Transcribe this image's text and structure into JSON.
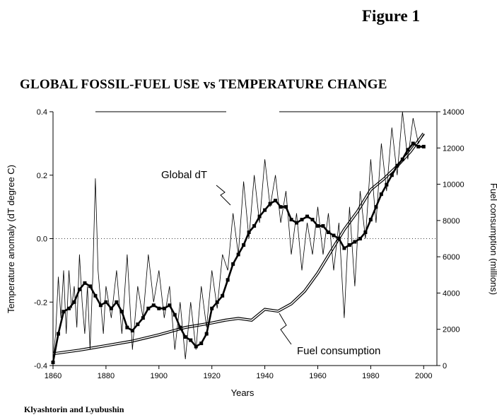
{
  "figure_label": "Figure 1",
  "credit": "Klyashtorin and Lyubushin",
  "chart_data": {
    "type": "line",
    "title": "GLOBAL FOSSIL-FUEL USE vs TEMPERATURE CHANGE",
    "xlabel": "Years",
    "ylabel": "Temperature anomaly (dT degree C)",
    "y2label": "Fuel consumption (millions)",
    "xlim": [
      1860,
      2000
    ],
    "ylim": [
      -0.4,
      0.4
    ],
    "y2lim": [
      0,
      14000
    ],
    "x_ticks": [
      "1860",
      "1880",
      "1900",
      "1920",
      "1940",
      "1960",
      "1980",
      "2000"
    ],
    "y_ticks": [
      "0.4",
      "0.2",
      "0.0",
      "-0.2",
      "-0.4"
    ],
    "y2_ticks": [
      "14000",
      "12000",
      "10000",
      "8000",
      "6000",
      "4000",
      "2000",
      "0"
    ],
    "annotations": [
      "Global dT",
      "Fuel consumption"
    ],
    "grid": "dotted zero line",
    "series": [
      {
        "style": "thick line with square markers",
        "axis": "left",
        "x": [
          1860,
          1862,
          1864,
          1866,
          1868,
          1870,
          1872,
          1874,
          1876,
          1878,
          1880,
          1882,
          1884,
          1886,
          1888,
          1890,
          1892,
          1894,
          1896,
          1898,
          1900,
          1902,
          1904,
          1906,
          1908,
          1910,
          1912,
          1914,
          1916,
          1918,
          1920,
          1922,
          1924,
          1926,
          1928,
          1930,
          1932,
          1934,
          1936,
          1938,
          1940,
          1942,
          1944,
          1946,
          1948,
          1950,
          1952,
          1954,
          1956,
          1958,
          1960,
          1962,
          1964,
          1966,
          1968,
          1970,
          1972,
          1974,
          1976,
          1978,
          1980,
          1982,
          1984,
          1986,
          1988,
          1990,
          1992,
          1994,
          1996,
          1998,
          2000
        ],
        "y": [
          -0.39,
          -0.3,
          -0.23,
          -0.22,
          -0.2,
          -0.16,
          -0.14,
          -0.15,
          -0.18,
          -0.21,
          -0.2,
          -0.22,
          -0.2,
          -0.23,
          -0.28,
          -0.29,
          -0.27,
          -0.25,
          -0.22,
          -0.21,
          -0.22,
          -0.22,
          -0.21,
          -0.24,
          -0.28,
          -0.31,
          -0.32,
          -0.34,
          -0.33,
          -0.3,
          -0.22,
          -0.2,
          -0.18,
          -0.13,
          -0.08,
          -0.05,
          -0.02,
          0.02,
          0.04,
          0.07,
          0.09,
          0.11,
          0.12,
          0.1,
          0.1,
          0.06,
          0.05,
          0.06,
          0.07,
          0.06,
          0.04,
          0.04,
          0.02,
          0.01,
          0.0,
          -0.03,
          -0.02,
          -0.01,
          0.0,
          0.02,
          0.06,
          0.1,
          0.14,
          0.17,
          0.2,
          0.23,
          0.25,
          0.28,
          0.3,
          0.29,
          0.29
        ]
      },
      {
        "style": "thin line",
        "axis": "left",
        "x": [
          1860,
          1861,
          1862,
          1863,
          1864,
          1865,
          1866,
          1867,
          1868,
          1869,
          1870,
          1871,
          1872,
          1873,
          1874,
          1875,
          1876,
          1877,
          1878,
          1879,
          1880,
          1882,
          1884,
          1886,
          1888,
          1890,
          1892,
          1894,
          1896,
          1898,
          1900,
          1902,
          1904,
          1906,
          1908,
          1910,
          1912,
          1914,
          1916,
          1918,
          1920,
          1922,
          1924,
          1926,
          1928,
          1930,
          1932,
          1934,
          1936,
          1938,
          1940,
          1942,
          1944,
          1946,
          1948,
          1950,
          1952,
          1954,
          1956,
          1958,
          1960,
          1962,
          1964,
          1966,
          1968,
          1970,
          1972,
          1974,
          1976,
          1978,
          1980,
          1982,
          1984,
          1986,
          1988,
          1990,
          1992,
          1994,
          1996,
          1998,
          2000
        ],
        "y": [
          -0.38,
          -0.3,
          -0.12,
          -0.25,
          -0.1,
          -0.3,
          -0.1,
          -0.22,
          -0.15,
          -0.28,
          -0.05,
          -0.2,
          -0.3,
          -0.15,
          -0.35,
          -0.12,
          0.19,
          -0.1,
          -0.2,
          -0.3,
          -0.15,
          -0.25,
          -0.1,
          -0.3,
          -0.05,
          -0.35,
          -0.15,
          -0.25,
          -0.05,
          -0.2,
          -0.1,
          -0.25,
          -0.15,
          -0.35,
          -0.2,
          -0.38,
          -0.2,
          -0.35,
          -0.15,
          -0.28,
          -0.1,
          -0.22,
          -0.05,
          -0.1,
          0.08,
          -0.05,
          0.18,
          0.0,
          0.2,
          0.05,
          0.25,
          0.1,
          0.2,
          0.05,
          0.15,
          -0.05,
          0.08,
          -0.1,
          0.05,
          -0.05,
          0.1,
          -0.05,
          0.08,
          -0.1,
          0.05,
          -0.25,
          0.1,
          -0.15,
          0.15,
          0.0,
          0.25,
          0.05,
          0.3,
          0.15,
          0.35,
          0.2,
          0.4,
          0.25,
          0.38,
          0.3,
          0.33
        ]
      },
      {
        "style": "double line",
        "axis": "right",
        "name": "Fuel consumption",
        "x": [
          1860,
          1870,
          1880,
          1890,
          1900,
          1910,
          1920,
          1925,
          1930,
          1935,
          1940,
          1945,
          1950,
          1955,
          1960,
          1965,
          1970,
          1975,
          1980,
          1985,
          1990,
          1995,
          2000
        ],
        "y": [
          650,
          850,
          1100,
          1350,
          1700,
          2100,
          2350,
          2500,
          2600,
          2500,
          3100,
          3000,
          3400,
          4100,
          5100,
          6300,
          7500,
          8500,
          9700,
          10300,
          11000,
          11800,
          12800
        ]
      }
    ]
  }
}
